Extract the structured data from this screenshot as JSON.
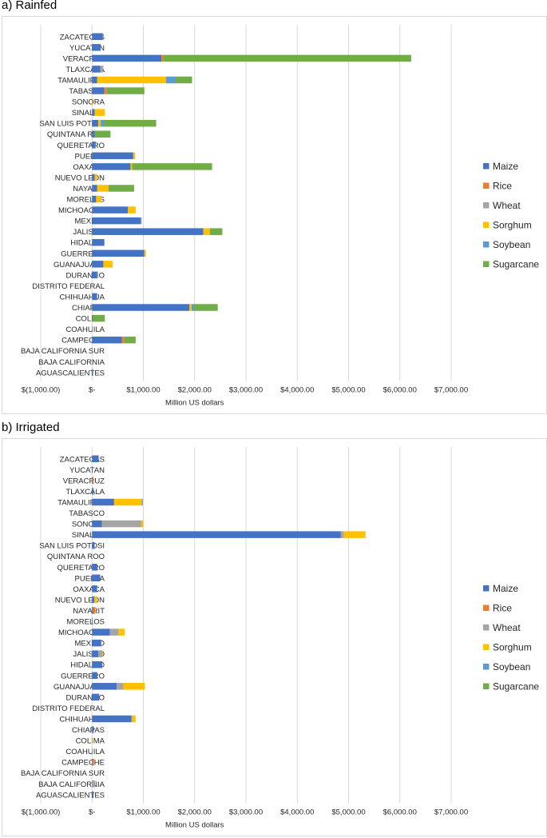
{
  "chart_data": [
    {
      "id": "a",
      "type": "bar",
      "orientation": "horizontal",
      "stacked": true,
      "panel_title": "a) Rainfed",
      "xlabel": "Million US dollars",
      "xlim": [
        -1000,
        7000
      ],
      "tick_labels": [
        "$(1,000.00)",
        "$-",
        "$1,000.00",
        "$2,000.00",
        "$3,000.00",
        "$4,000.00",
        "$5,000.00",
        "$6,000.00",
        "$7,000.00"
      ],
      "gridlines": true,
      "legend_position": "right",
      "categories": [
        "ZACATECAS",
        "YUCATAN",
        "VERACRUZ",
        "TLAXCALA",
        "TAMAULIPAS",
        "TABASCO",
        "SONORA",
        "SINALOA",
        "SAN LUIS POTOSI",
        "QUINTANA ROO",
        "QUERETARO",
        "PUEBLA",
        "OAXACA",
        "NUEVO LEON",
        "NAYARIT",
        "MORELOS",
        "MICHOACAN",
        "MEXICO",
        "JALISCO",
        "HIDALGO",
        "GUERRERO",
        "GUANAJUATO",
        "DURANGO",
        "DISTRITO FEDERAL",
        "CHIHUAHUA",
        "CHIAPAS",
        "COLIMA",
        "COAHUILA",
        "CAMPECHE",
        "BAJA CALIFORNIA SUR",
        "BAJA CALIFORNIA",
        "AGUASCALIENTES"
      ],
      "series": [
        {
          "name": "Maize",
          "color": "#4472c4",
          "values": [
            210,
            170,
            1350,
            160,
            100,
            240,
            0,
            50,
            120,
            50,
            70,
            800,
            750,
            50,
            100,
            80,
            700,
            950,
            2170,
            240,
            1020,
            220,
            100,
            0,
            100,
            1900,
            5,
            0,
            580,
            0,
            0,
            10
          ]
        },
        {
          "name": "Rice",
          "color": "#ed7d31",
          "values": [
            0,
            0,
            40,
            0,
            0,
            50,
            0,
            0,
            0,
            0,
            0,
            0,
            0,
            0,
            0,
            0,
            0,
            0,
            0,
            0,
            0,
            0,
            0,
            0,
            0,
            0,
            5,
            0,
            50,
            0,
            0,
            0
          ]
        },
        {
          "name": "Wheat",
          "color": "#a5a5a5",
          "values": [
            10,
            0,
            0,
            60,
            0,
            0,
            0,
            0,
            0,
            0,
            0,
            10,
            0,
            0,
            0,
            0,
            0,
            20,
            0,
            0,
            0,
            0,
            20,
            0,
            0,
            0,
            0,
            10,
            0,
            0,
            0,
            0
          ]
        },
        {
          "name": "Sorghum",
          "color": "#ffc000",
          "values": [
            0,
            0,
            0,
            0,
            1340,
            0,
            15,
            200,
            50,
            0,
            0,
            30,
            30,
            50,
            220,
            100,
            150,
            0,
            130,
            0,
            30,
            180,
            0,
            0,
            0,
            40,
            0,
            0,
            0,
            0,
            0,
            0
          ]
        },
        {
          "name": "Soybean",
          "color": "#5b9bd5",
          "values": [
            0,
            0,
            0,
            0,
            190,
            0,
            0,
            0,
            60,
            0,
            0,
            0,
            0,
            0,
            0,
            0,
            0,
            0,
            0,
            0,
            0,
            0,
            0,
            0,
            0,
            40,
            0,
            0,
            0,
            0,
            0,
            10
          ]
        },
        {
          "name": "Sugarcane",
          "color": "#70ad47",
          "values": [
            0,
            0,
            4830,
            0,
            320,
            730,
            0,
            0,
            1020,
            310,
            0,
            0,
            1560,
            0,
            500,
            0,
            0,
            0,
            240,
            0,
            0,
            0,
            0,
            0,
            0,
            470,
            240,
            0,
            220,
            0,
            0,
            0
          ]
        }
      ]
    },
    {
      "id": "b",
      "type": "bar",
      "orientation": "horizontal",
      "stacked": true,
      "panel_title": "b) Irrigated",
      "xlabel": "Million US dollars",
      "xlim": [
        -1000,
        7000
      ],
      "tick_labels": [
        "$(1,000.00)",
        "$-",
        "$1,000.00",
        "$2,000.00",
        "$3,000.00",
        "$4,000.00",
        "$5,000.00",
        "$6,000.00",
        "$7,000.00"
      ],
      "gridlines": true,
      "legend_position": "right",
      "categories": [
        "ZACATECAS",
        "YUCATAN",
        "VERACRUZ",
        "TLAXCALA",
        "TAMAULIPAS",
        "TABASCO",
        "SONORA",
        "SINALOA",
        "SAN LUIS POTOSI",
        "QUINTANA ROO",
        "QUERETARO",
        "PUEBLA",
        "OAXACA",
        "NUEVO LEON",
        "NAYARIT",
        "MORELOS",
        "MICHOACAN",
        "MEXICO",
        "JALISCO",
        "HIDALGO",
        "GUERRERO",
        "GUANAJUATO",
        "DURANGO",
        "DISTRITO FEDERAL",
        "CHIHUAHUA",
        "CHIAPAS",
        "COLIMA",
        "COAHUILA",
        "CAMPECHE",
        "BAJA CALIFORNIA SUR",
        "BAJA CALIFORNIA",
        "AGUASCALIENTES"
      ],
      "series": [
        {
          "name": "Maize",
          "color": "#4472c4",
          "values": [
            130,
            5,
            10,
            30,
            430,
            0,
            190,
            4850,
            50,
            0,
            100,
            160,
            100,
            40,
            20,
            10,
            350,
            180,
            120,
            200,
            100,
            480,
            140,
            0,
            770,
            30,
            0,
            0,
            10,
            0,
            5,
            30
          ]
        },
        {
          "name": "Rice",
          "color": "#ed7d31",
          "values": [
            0,
            0,
            20,
            0,
            0,
            0,
            0,
            0,
            0,
            0,
            0,
            0,
            0,
            0,
            40,
            0,
            0,
            0,
            0,
            0,
            0,
            0,
            0,
            0,
            0,
            0,
            0,
            0,
            30,
            0,
            0,
            0
          ]
        },
        {
          "name": "Wheat",
          "color": "#a5a5a5",
          "values": [
            0,
            0,
            0,
            0,
            0,
            0,
            770,
            60,
            0,
            0,
            0,
            0,
            0,
            10,
            0,
            0,
            170,
            0,
            80,
            0,
            0,
            130,
            0,
            0,
            10,
            0,
            0,
            10,
            0,
            0,
            60,
            0
          ]
        },
        {
          "name": "Sorghum",
          "color": "#ffc000",
          "values": [
            0,
            0,
            0,
            0,
            540,
            0,
            40,
            420,
            0,
            0,
            0,
            0,
            0,
            50,
            10,
            0,
            120,
            0,
            10,
            0,
            0,
            420,
            0,
            0,
            70,
            0,
            10,
            0,
            0,
            0,
            0,
            0
          ]
        },
        {
          "name": "Soybean",
          "color": "#5b9bd5",
          "values": [
            0,
            0,
            0,
            0,
            20,
            0,
            0,
            0,
            0,
            0,
            0,
            0,
            0,
            0,
            0,
            0,
            0,
            0,
            0,
            0,
            0,
            0,
            0,
            0,
            0,
            0,
            0,
            0,
            0,
            0,
            0,
            0
          ]
        },
        {
          "name": "Sugarcane",
          "color": "#70ad47",
          "values": [
            0,
            0,
            0,
            0,
            0,
            0,
            0,
            0,
            0,
            0,
            0,
            0,
            0,
            0,
            0,
            0,
            0,
            0,
            0,
            0,
            0,
            0,
            0,
            0,
            0,
            0,
            0,
            0,
            0,
            0,
            0,
            0
          ]
        }
      ]
    }
  ]
}
